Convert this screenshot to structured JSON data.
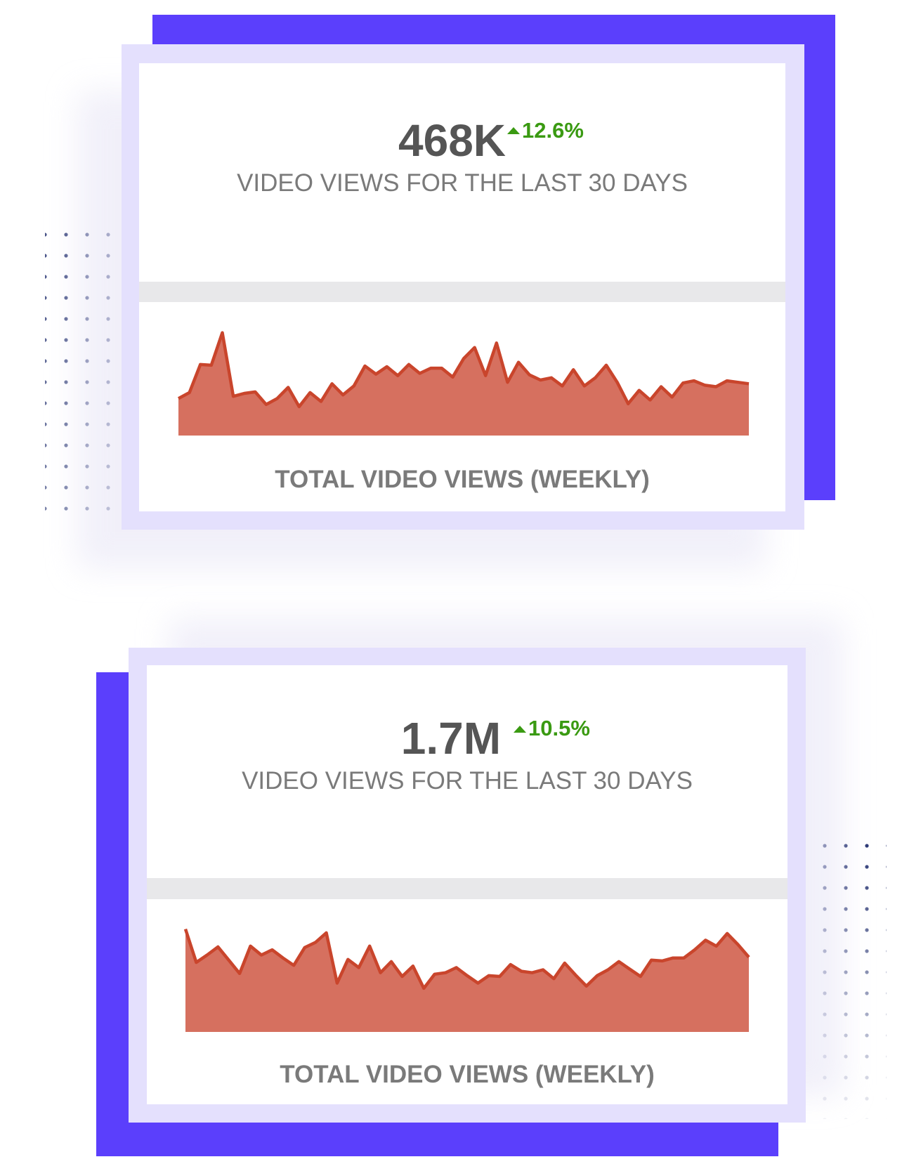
{
  "cards": [
    {
      "value": "468K",
      "change": "12.6%",
      "caption": "VIDEO VIEWS FOR THE LAST 30 DAYS"
    },
    {
      "value": "1.7M",
      "change": "10.5%",
      "caption": "VIDEO VIEWS FOR THE LAST 30 DAYS"
    }
  ],
  "chart_data": [
    {
      "type": "area",
      "title": "TOTAL VIDEO VIEWS (WEEKLY)",
      "color": "#d6705f",
      "line_color": "#c9452c",
      "ylim": [
        0,
        150
      ],
      "values": [
        50,
        58,
        96,
        95,
        139,
        53,
        57,
        59,
        42,
        50,
        65,
        39,
        58,
        46,
        70,
        55,
        67,
        94,
        83,
        93,
        81,
        96,
        84,
        91,
        91,
        79,
        104,
        119,
        81,
        125,
        72,
        99,
        82,
        75,
        78,
        67,
        89,
        67,
        78,
        95,
        72,
        43,
        61,
        48,
        66,
        52,
        71,
        74,
        68,
        66,
        74,
        72,
        70
      ]
    },
    {
      "type": "area",
      "title": "TOTAL VIDEO VIEWS (WEEKLY)",
      "color": "#d6705f",
      "line_color": "#c9452c",
      "ylim": [
        0,
        150
      ],
      "values": [
        139,
        94,
        104,
        115,
        97,
        79,
        116,
        104,
        111,
        100,
        90,
        114,
        121,
        134,
        66,
        98,
        87,
        116,
        80,
        95,
        75,
        89,
        59,
        78,
        80,
        87,
        76,
        66,
        76,
        75,
        91,
        82,
        80,
        84,
        72,
        93,
        77,
        62,
        76,
        84,
        95,
        85,
        75,
        97,
        96,
        100,
        100,
        111,
        124,
        116,
        133,
        118,
        101
      ]
    }
  ]
}
